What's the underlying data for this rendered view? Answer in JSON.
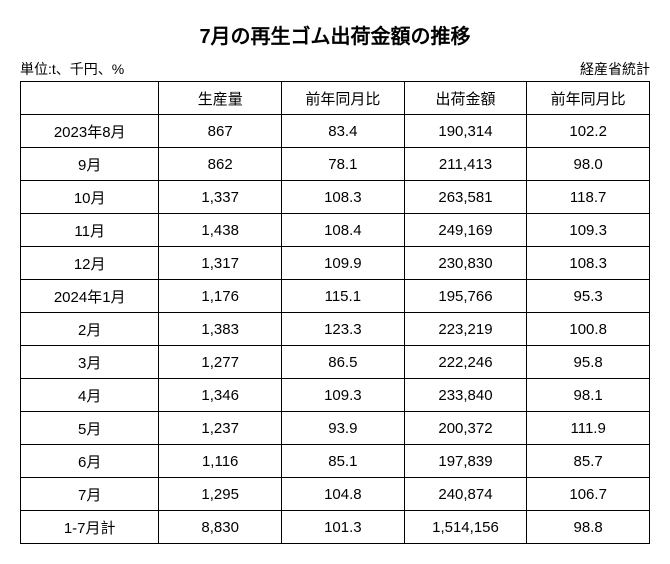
{
  "title": "7月の再生ゴム出荷金額の推移",
  "unit_label": "単位:t、千円、%",
  "source_label": "経産省統計",
  "table": {
    "columns": [
      "",
      "生産量",
      "前年同月比",
      "出荷金額",
      "前年同月比"
    ],
    "rows": [
      [
        "2023年8月",
        "867",
        "83.4",
        "190,314",
        "102.2"
      ],
      [
        "9月",
        "862",
        "78.1",
        "211,413",
        "98.0"
      ],
      [
        "10月",
        "1,337",
        "108.3",
        "263,581",
        "118.7"
      ],
      [
        "11月",
        "1,438",
        "108.4",
        "249,169",
        "109.3"
      ],
      [
        "12月",
        "1,317",
        "109.9",
        "230,830",
        "108.3"
      ],
      [
        "2024年1月",
        "1,176",
        "115.1",
        "195,766",
        "95.3"
      ],
      [
        "2月",
        "1,383",
        "123.3",
        "223,219",
        "100.8"
      ],
      [
        "3月",
        "1,277",
        "86.5",
        "222,246",
        "95.8"
      ],
      [
        "4月",
        "1,346",
        "109.3",
        "233,840",
        "98.1"
      ],
      [
        "5月",
        "1,237",
        "93.9",
        "200,372",
        "111.9"
      ],
      [
        "6月",
        "1,116",
        "85.1",
        "197,839",
        "85.7"
      ],
      [
        "7月",
        "1,295",
        "104.8",
        "240,874",
        "106.7"
      ],
      [
        "1-7月計",
        "8,830",
        "101.3",
        "1,514,156",
        "98.8"
      ]
    ]
  }
}
